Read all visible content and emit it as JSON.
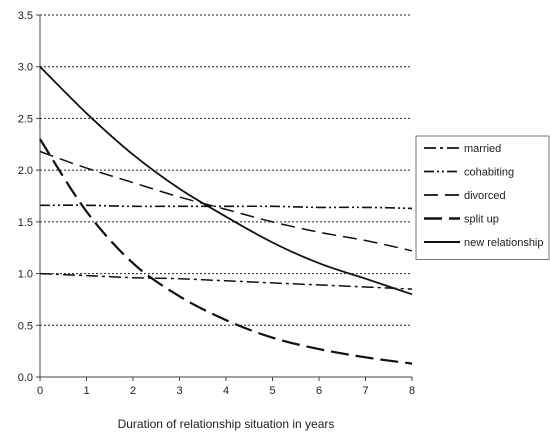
{
  "chart_data": {
    "type": "line",
    "title": "",
    "xlabel": "Duration of relationship situation in years",
    "ylabel": "",
    "xlim": [
      0,
      8
    ],
    "ylim": [
      0,
      3.5
    ],
    "x_ticks": [
      "0",
      "1",
      "2",
      "3",
      "4",
      "5",
      "6",
      "7",
      "8"
    ],
    "y_ticks": [
      "0.0",
      "0.5",
      "1.0",
      "1.5",
      "2.0",
      "2.5",
      "3.0",
      "3.5"
    ],
    "grid": "horizontal dotted",
    "legend_position": "right",
    "series": [
      {
        "name": "married",
        "dash": "dash-dot",
        "x": [
          0,
          1,
          2,
          3,
          4,
          5,
          6,
          7,
          8
        ],
        "y": [
          1.0,
          0.98,
          0.96,
          0.95,
          0.93,
          0.91,
          0.89,
          0.87,
          0.85
        ]
      },
      {
        "name": "cohabiting",
        "dash": "dash-dot-dot",
        "x": [
          0,
          1,
          2,
          3,
          4,
          5,
          6,
          7,
          8
        ],
        "y": [
          1.66,
          1.66,
          1.65,
          1.65,
          1.65,
          1.65,
          1.64,
          1.64,
          1.63
        ]
      },
      {
        "name": "divorced",
        "dash": "long-dash",
        "x": [
          0,
          1,
          2,
          3,
          4,
          5,
          6,
          7,
          8
        ],
        "y": [
          2.18,
          2.02,
          1.88,
          1.74,
          1.62,
          1.5,
          1.4,
          1.32,
          1.22
        ]
      },
      {
        "name": "split up",
        "dash": "heavy-dash",
        "x": [
          0,
          1,
          2,
          3,
          4,
          5,
          6,
          7,
          8
        ],
        "y": [
          2.3,
          1.6,
          1.1,
          0.78,
          0.55,
          0.38,
          0.27,
          0.19,
          0.13
        ]
      },
      {
        "name": "new relationship",
        "dash": "solid",
        "x": [
          0,
          1,
          2,
          3,
          4,
          5,
          6,
          7,
          8
        ],
        "y": [
          3.0,
          2.55,
          2.15,
          1.82,
          1.55,
          1.3,
          1.1,
          0.95,
          0.8
        ]
      }
    ],
    "colors": {
      "line": "#111111",
      "grid": "#222222",
      "axis": "#444444"
    }
  }
}
